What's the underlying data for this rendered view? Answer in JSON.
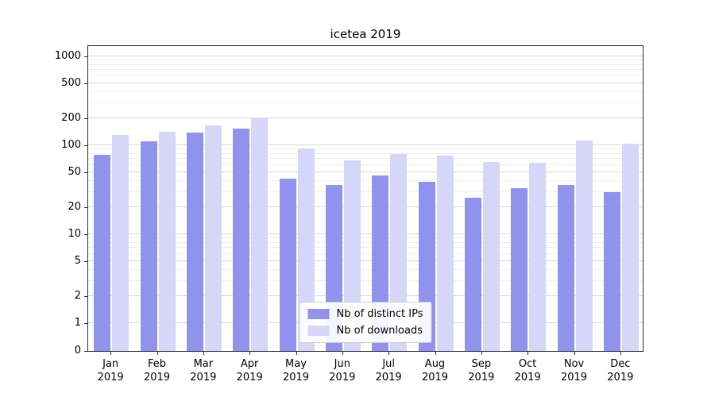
{
  "colors": {
    "distinct_ips": "#9191ee",
    "downloads": "#d6d6f9",
    "grid_major": "#d8d8d8",
    "grid_minor": "#efefef",
    "axis": "#2a2a2a",
    "legend_border": "#cccccc",
    "background": "#ffffff"
  },
  "legend": {
    "items": [
      {
        "label": "Nb of distinct IPs",
        "color_key": "distinct_ips"
      },
      {
        "label": "Nb of downloads",
        "color_key": "downloads"
      }
    ]
  },
  "chart_data": {
    "type": "bar",
    "title": "icetea 2019",
    "xlabel": "",
    "ylabel": "",
    "y_scale": "symlog",
    "grid": true,
    "legend_position": "lower center",
    "yticks": [
      0,
      1,
      2,
      5,
      10,
      20,
      50,
      100,
      200,
      500,
      1000
    ],
    "ylim": [
      0,
      1400
    ],
    "x_tick_labels": [
      {
        "month": "Jan",
        "year": "2019"
      },
      {
        "month": "Feb",
        "year": "2019"
      },
      {
        "month": "Mar",
        "year": "2019"
      },
      {
        "month": "Apr",
        "year": "2019"
      },
      {
        "month": "May",
        "year": "2019"
      },
      {
        "month": "Jun",
        "year": "2019"
      },
      {
        "month": "Jul",
        "year": "2019"
      },
      {
        "month": "Aug",
        "year": "2019"
      },
      {
        "month": "Sep",
        "year": "2019"
      },
      {
        "month": "Oct",
        "year": "2019"
      },
      {
        "month": "Nov",
        "year": "2019"
      },
      {
        "month": "Dec",
        "year": "2019"
      }
    ],
    "series": [
      {
        "name": "Nb of distinct IPs",
        "color_key": "distinct_ips",
        "values": [
          78,
          110,
          140,
          155,
          42,
          36,
          46,
          39,
          26,
          33,
          36,
          30
        ]
      },
      {
        "name": "Nb of downloads",
        "color_key": "downloads",
        "values": [
          130,
          142,
          168,
          202,
          92,
          68,
          80,
          77,
          65,
          64,
          113,
          105
        ]
      }
    ]
  }
}
